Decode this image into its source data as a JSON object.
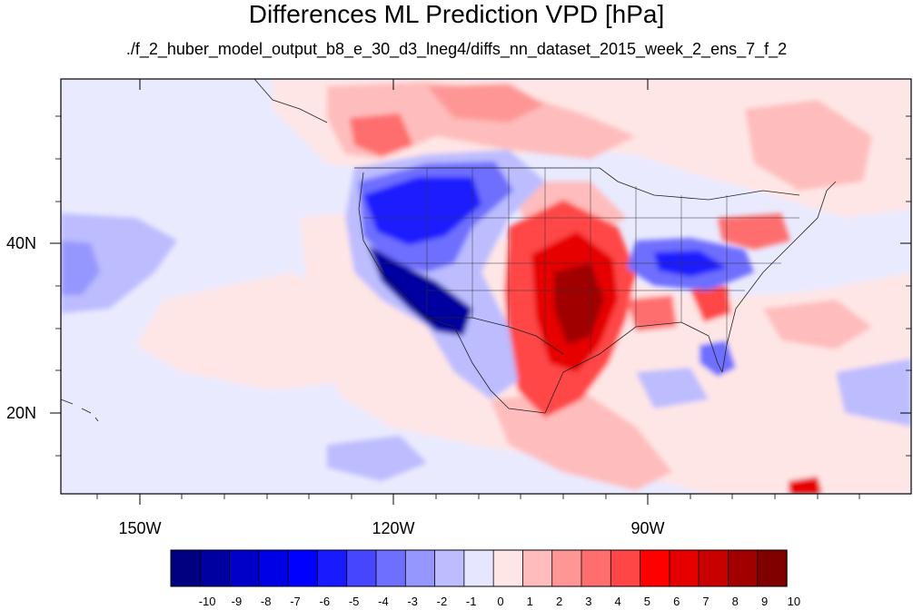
{
  "title": "Differences ML Prediction VPD [hPa]",
  "subtitle": "./f_2_huber_model_output_b8_e_30_d3_lneg4/diffs_nn_dataset_2015_week_2_ens_7_f_2",
  "lat_labels": [
    "40N",
    "20N"
  ],
  "lon_labels": [
    "150W",
    "120W",
    "90W"
  ],
  "colorbar": {
    "tick_labels": [
      "-10",
      "-9",
      "-8",
      "-7",
      "-6",
      "-5",
      "-4",
      "-3",
      "-2",
      "-1",
      "0",
      "1",
      "2",
      "3",
      "4",
      "5",
      "6",
      "7",
      "8",
      "9",
      "10"
    ],
    "colors": [
      "#000080",
      "#0000a0",
      "#0000c8",
      "#0000e6",
      "#0000ff",
      "#1a1aff",
      "#4646ff",
      "#6e6eff",
      "#9696ff",
      "#bcbcff",
      "#e6e6ff",
      "#ffe6e6",
      "#ffbcbc",
      "#ff9696",
      "#ff6e6e",
      "#ff4646",
      "#ff0000",
      "#e60000",
      "#c80000",
      "#a00000",
      "#800000"
    ]
  },
  "field_colors": {
    "ocean_base": "#eaeaff",
    "light_red": "#ffe6e6",
    "pink": "#ffbcbc",
    "red_mid": "#ff6e6e",
    "red_strong": "#e60000",
    "red_dark": "#a00000",
    "blue_light": "#bcbcff",
    "blue_mid": "#6e6eff",
    "blue_strong": "#1a1aff",
    "blue_dark": "#0000a0"
  }
}
